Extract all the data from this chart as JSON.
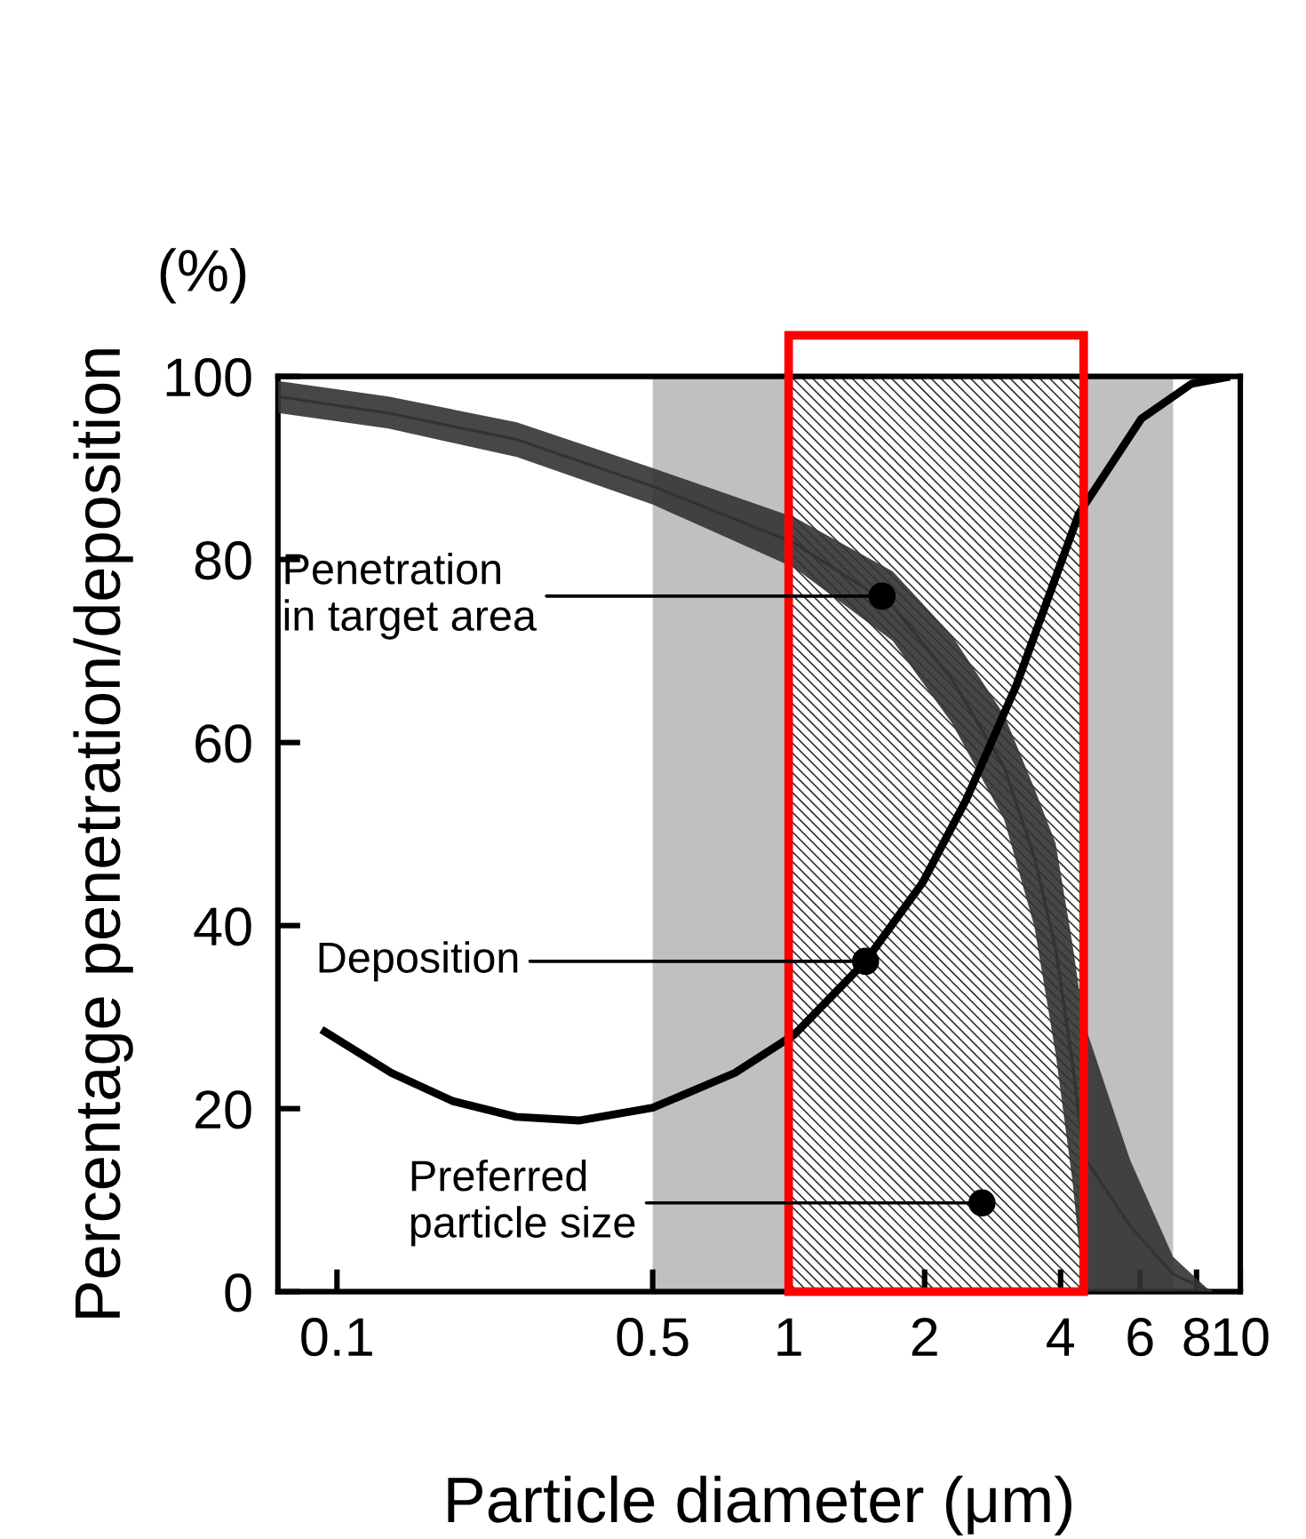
{
  "chart_data": {
    "type": "line",
    "xlabel": "Particle diameter (μm)",
    "ylabel": "Percentage penetration/deposition",
    "log": "x",
    "xlim": [
      0.074,
      10
    ],
    "xticks": [
      0.1,
      0.5,
      1,
      2,
      4,
      6,
      8,
      10
    ],
    "ylim": [
      0,
      100
    ],
    "yticks": [
      0,
      20,
      40,
      60,
      80,
      100
    ],
    "grid": false,
    "legend": false,
    "series": [
      {
        "color": "#333333",
        "x": [
          0.074,
          0.13,
          0.25,
          0.5,
          1.03,
          1.7,
          2.3,
          3.0,
          3.5,
          3.9,
          4.25,
          4.5,
          5.7,
          7.1,
          8.6
        ],
        "values": [
          97.8,
          96,
          93.1,
          88,
          81.8,
          74.9,
          66.9,
          57.3,
          47.5,
          37.5,
          25,
          14.8,
          7.2,
          1.9,
          0
        ],
        "lower": [
          96,
          94.3,
          91.2,
          86,
          79.1,
          71.1,
          62.1,
          51.6,
          39.9,
          26,
          12.1,
          0,
          0,
          0,
          0
        ],
        "upper": [
          99.5,
          97.8,
          95,
          90,
          84.6,
          78.7,
          71.7,
          63,
          55,
          49,
          38,
          29.5,
          14.4,
          3.8,
          0
        ]
      },
      {
        "color": "#000000",
        "x": [
          0.094,
          0.132,
          0.181,
          0.249,
          0.343,
          0.5,
          0.76,
          1.03,
          1.48,
          1.98,
          2.47,
          3.19,
          4.39,
          6.04,
          7.8,
          9.3
        ],
        "values": [
          28.4,
          23.9,
          20.8,
          19.1,
          18.7,
          20.1,
          23.9,
          28.1,
          36.1,
          44.7,
          53.7,
          66.2,
          85,
          95.4,
          99.2,
          99.9
        ]
      }
    ],
    "bands": [
      {
        "axis": "x",
        "from": 0.5,
        "to": 7.1,
        "color": "#c0c0c0"
      },
      {
        "axis": "x",
        "from": 1,
        "to": 4.5,
        "color": "#ff0000"
      }
    ],
    "annotations": [
      "(%)",
      {
        "text": "Penetration\nin target area",
        "x": 1.61,
        "y": 76
      },
      {
        "text": "Deposition",
        "x": 1.48,
        "y": 36.1
      },
      {
        "text": "Preferred\nparticle size",
        "x": 2.68,
        "y": 9.7
      }
    ]
  }
}
